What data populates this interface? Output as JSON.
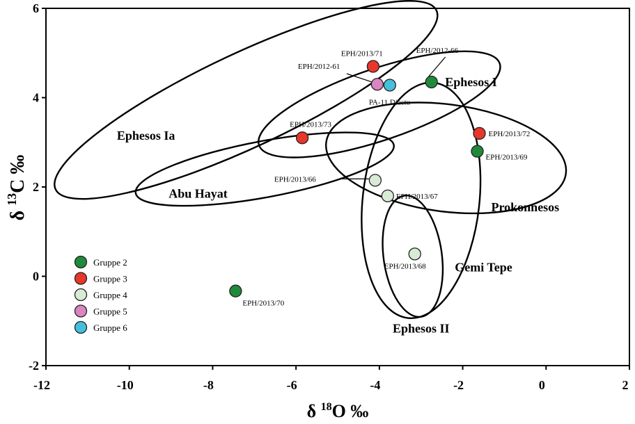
{
  "chart_data": {
    "type": "scatter",
    "xlabel": {
      "prefix": "δ ",
      "sup": "18",
      "main": "O ‰"
    },
    "ylabel": {
      "prefix": "δ ",
      "sup": "13",
      "main": "C ‰"
    },
    "xlim": [
      -12,
      2
    ],
    "ylim": [
      -2,
      6
    ],
    "x_ticks": [
      -12,
      -10,
      -8,
      -6,
      -4,
      -2,
      0,
      2
    ],
    "y_ticks": [
      -2,
      0,
      2,
      4,
      6
    ],
    "grid": false,
    "legend_position": "bottom-left",
    "groups": [
      {
        "name": "Gruppe 2",
        "color": "#1e8a3a"
      },
      {
        "name": "Gruppe 3",
        "color": "#e8362b"
      },
      {
        "name": "Gruppe 4",
        "color": "#d8ebd4"
      },
      {
        "name": "Gruppe 5",
        "color": "#d985c0"
      },
      {
        "name": "Gruppe 6",
        "color": "#45c0dc"
      }
    ],
    "points": [
      {
        "label": "EPH/2013/71",
        "group": "Gruppe 3",
        "x": -4.15,
        "y": 4.7
      },
      {
        "label": "EPH/2012-66",
        "group": "Gruppe 2",
        "x": -2.75,
        "y": 4.35
      },
      {
        "label": "EPH/2012-61",
        "group": "Gruppe 5",
        "x": -4.05,
        "y": 4.3
      },
      {
        "label": "PA-11 Diactu",
        "group": "Gruppe 6",
        "x": -3.75,
        "y": 4.28
      },
      {
        "label": "EPH/2013/73",
        "group": "Gruppe 3",
        "x": -5.85,
        "y": 3.1
      },
      {
        "label": "EPH/2013/72",
        "group": "Gruppe 3",
        "x": -1.6,
        "y": 3.2
      },
      {
        "label": "EPH/2013/69",
        "group": "Gruppe 2",
        "x": -1.65,
        "y": 2.8
      },
      {
        "label": "EPH/2013/66",
        "group": "Gruppe 4",
        "x": -4.1,
        "y": 2.15
      },
      {
        "label": "EPH/2013/67",
        "group": "Gruppe 4",
        "x": -3.8,
        "y": 1.8
      },
      {
        "label": "EPH/2013/68",
        "group": "Gruppe 4",
        "x": -3.15,
        "y": 0.5
      },
      {
        "label": "EPH/2013/70",
        "group": "Gruppe 2",
        "x": -7.45,
        "y": -0.33
      }
    ],
    "fields": [
      {
        "name": "Ephesos Ia",
        "cx": -7.2,
        "cy": 3.95,
        "rx": 5.05,
        "ry": 1.05,
        "angle": 25.2,
        "label_x": -9.6,
        "label_y": 3.15
      },
      {
        "name": "Ephesos I",
        "cx": -4.0,
        "cy": 3.85,
        "rx": 3.05,
        "ry": 0.8,
        "angle": 18.8,
        "label_x": -1.8,
        "label_y": 4.35
      },
      {
        "name": "Abu Hayat",
        "cx": -6.75,
        "cy": 2.4,
        "rx": 3.15,
        "ry": 0.63,
        "angle": 10.6,
        "label_x": -8.35,
        "label_y": 1.85
      },
      {
        "name": "Prokonnesos",
        "cx": -2.4,
        "cy": 2.65,
        "rx": 2.9,
        "ry": 1.2,
        "angle": -7.5,
        "label_x": -0.5,
        "label_y": 1.55
      },
      {
        "name": "Gemi Tepe",
        "cx": -3.0,
        "cy": 1.7,
        "rx": 1.4,
        "ry": 2.65,
        "angle": -6.3,
        "label_x": -1.5,
        "label_y": 0.2
      },
      {
        "name": "Ephesos II",
        "cx": -3.2,
        "cy": 0.45,
        "rx": 0.7,
        "ry": 1.37,
        "angle": 7.8,
        "label_x": -3.0,
        "label_y": -1.17
      }
    ]
  }
}
